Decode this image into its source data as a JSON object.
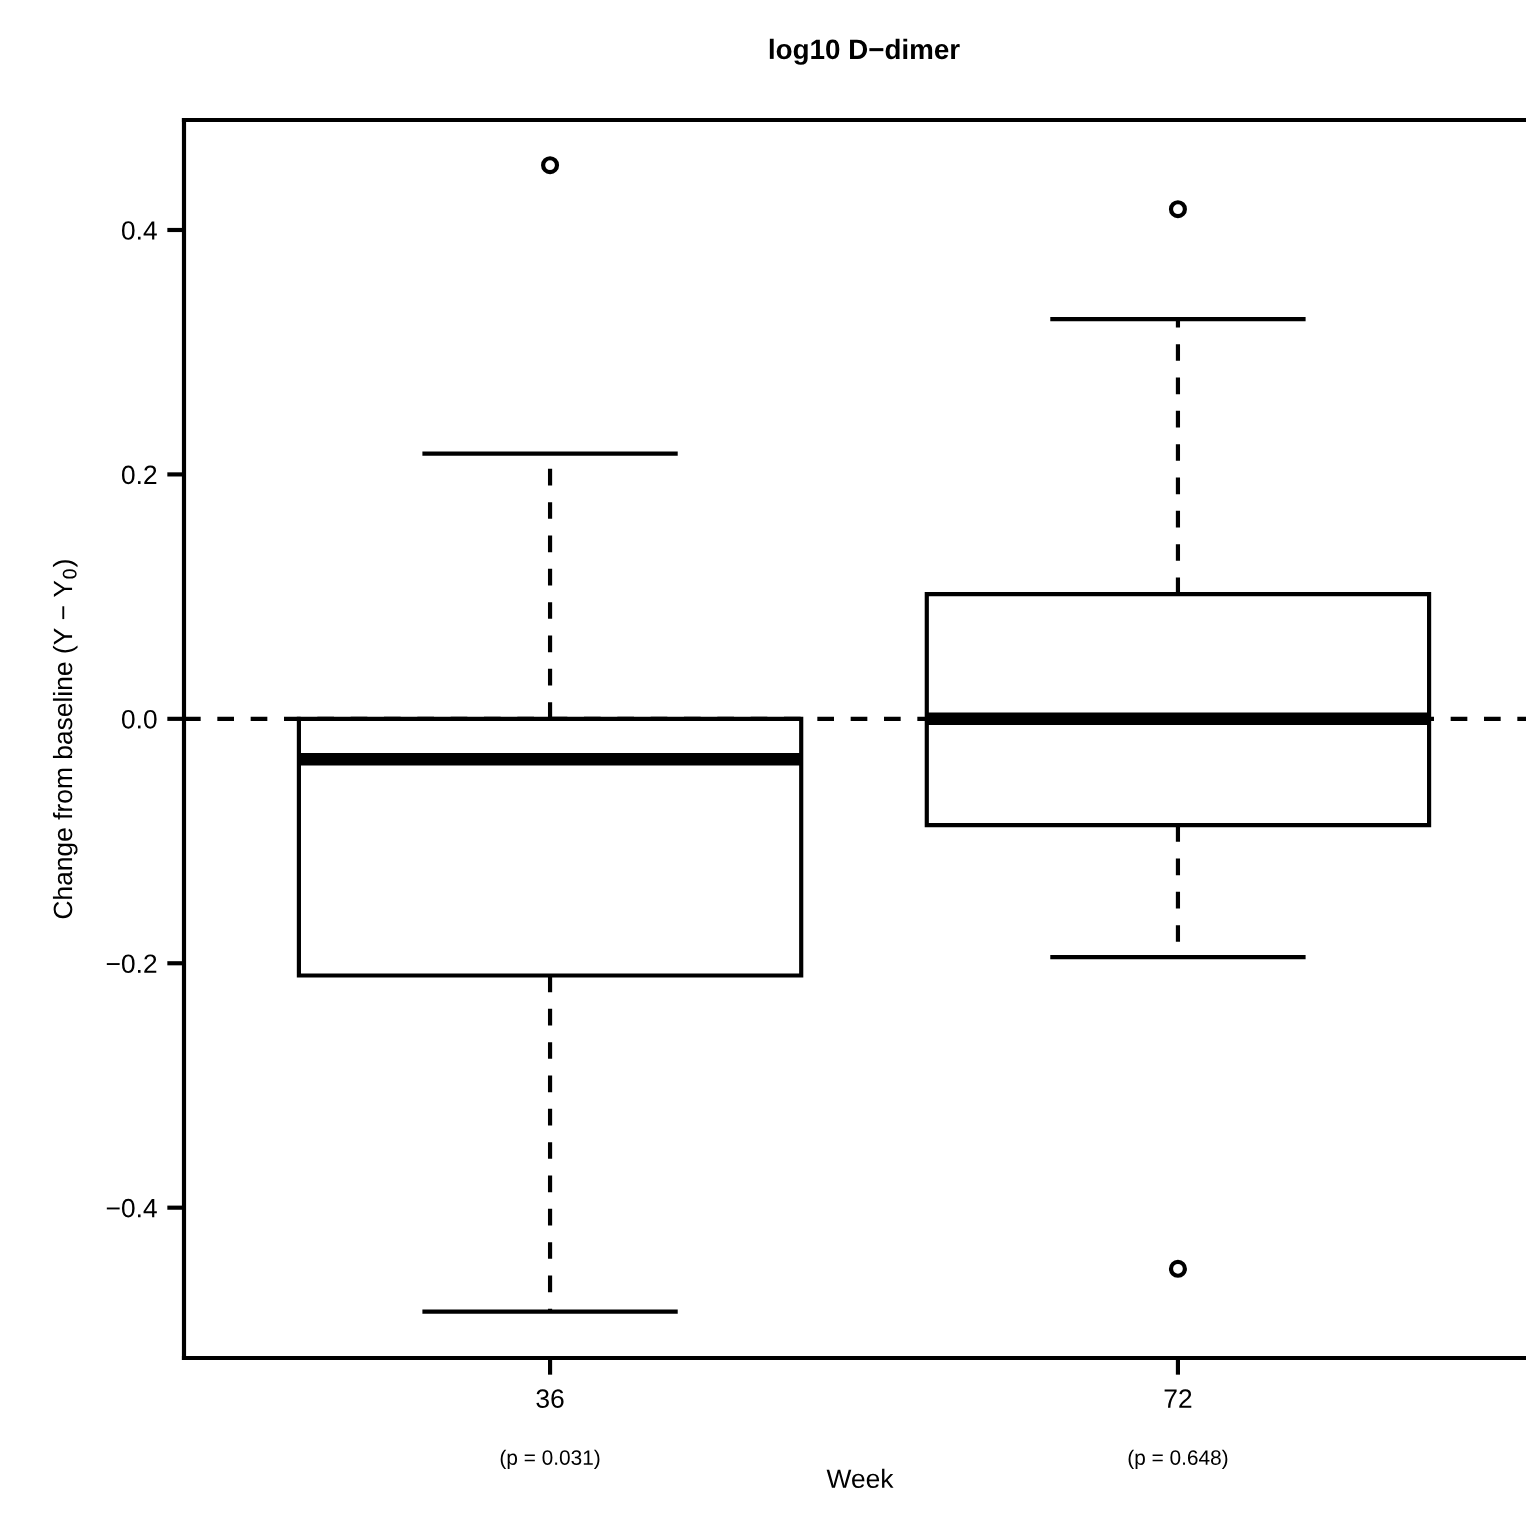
{
  "chart_data": {
    "type": "box",
    "title": "log10 D−dimer",
    "xlabel": "Week",
    "ylabel": "Change from baseline (Y − Y$_{0}$)",
    "categories": [
      "36",
      "72"
    ],
    "boxes": [
      {
        "low": -0.485,
        "q1": -0.21,
        "median": -0.033,
        "q3": 0.0,
        "high": 0.217,
        "outliers": [
          0.453
        ]
      },
      {
        "low": -0.195,
        "q1": -0.087,
        "median": 0.0,
        "q3": 0.102,
        "high": 0.327,
        "outliers": [
          0.417,
          -0.45
        ]
      }
    ],
    "ylim": [
      -0.523,
      0.49
    ],
    "yticks": [
      {
        "value": -0.4,
        "label": "−0.4"
      },
      {
        "value": -0.2,
        "label": "−0.2"
      },
      {
        "value": 0.0,
        "label": "0.0"
      },
      {
        "value": 0.2,
        "label": "0.2"
      },
      {
        "value": 0.4,
        "label": "0.4"
      }
    ],
    "ref_lines": [
      {
        "axis": "y",
        "value": 0,
        "line_style": "dashed"
      }
    ],
    "annotations": [
      "(p = 0.031)",
      "(p = 0.648)"
    ]
  }
}
